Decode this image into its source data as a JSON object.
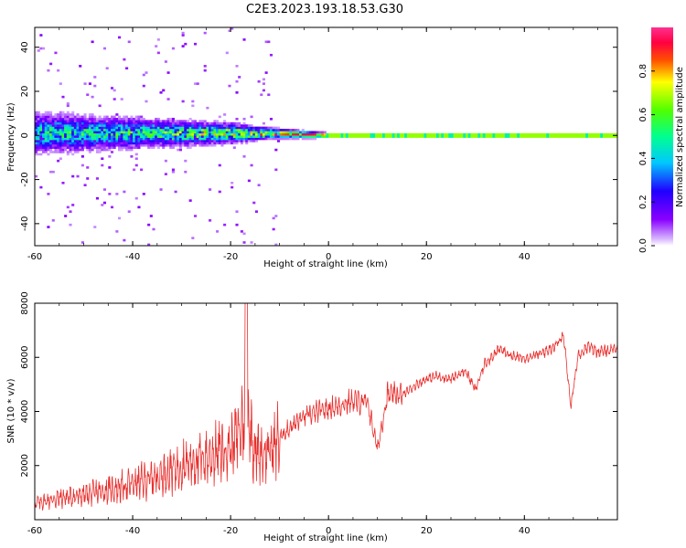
{
  "title": "C2E3.2023.193.18.53.G30",
  "colors": {
    "snr_line": "#e8302e",
    "axis": "#000000",
    "background": "#ffffff"
  },
  "chart_data": [
    {
      "type": "heatmap",
      "title": "C2E3.2023.193.18.53.G30",
      "xlabel": "Height of straight line (km)",
      "ylabel": "Frequency (Hz)",
      "xlim": [
        -60,
        59
      ],
      "ylim": [
        -50,
        49
      ],
      "xticks": [
        -60,
        -40,
        -20,
        0,
        20,
        40
      ],
      "yticks": [
        -40,
        -20,
        0,
        20,
        40
      ],
      "colorbar": {
        "label": "Normalized spectral amplitude",
        "range": [
          0,
          1
        ],
        "ticks": [
          0.0,
          0.2,
          0.4,
          0.6,
          0.8
        ],
        "colormap": "rainbow (white-violet-blue-cyan-green-yellow-red-pink)"
      },
      "description_points": [
        {
          "x": -60,
          "y_center": 1,
          "spread_hz": 8,
          "peak_amplitude": 0.5
        },
        {
          "x": -40,
          "y_center": 1,
          "spread_hz": 6,
          "peak_amplitude": 0.55
        },
        {
          "x": -20,
          "y_center": 1,
          "spread_hz": 4,
          "peak_amplitude": 0.7
        },
        {
          "x": -12,
          "y_center": 1,
          "spread_hz": 2,
          "peak_amplitude": 0.85
        },
        {
          "x": 0,
          "y_center": 0,
          "spread_hz": 1,
          "peak_amplitude": 1.0
        },
        {
          "x": 20,
          "y_center": 0,
          "spread_hz": 1,
          "peak_amplitude": 1.0
        },
        {
          "x": 40,
          "y_center": 0,
          "spread_hz": 1,
          "peak_amplitude": 1.0
        },
        {
          "x": 59,
          "y_center": 0,
          "spread_hz": 1,
          "peak_amplitude": 1.0
        }
      ],
      "grid": false
    },
    {
      "type": "line",
      "xlabel": "Height of straight line (km)",
      "ylabel": "SNR (10 * v/v)",
      "xlim": [
        -60,
        59
      ],
      "ylim": [
        0,
        8000
      ],
      "xticks": [
        -60,
        -40,
        -20,
        0,
        20,
        40
      ],
      "yticks": [
        2000,
        4000,
        6000,
        8000
      ],
      "series": [
        {
          "x": [
            -60,
            -55,
            -50,
            -45,
            -40,
            -35,
            -30,
            -25,
            -20,
            -18,
            -16.8,
            -15,
            -12,
            -10,
            -8,
            -5,
            -2,
            0,
            2,
            5,
            8,
            10,
            12,
            15,
            18,
            20,
            22,
            25,
            28,
            30,
            32,
            35,
            38,
            40,
            43,
            46,
            48,
            49.5,
            51,
            53,
            55,
            59
          ],
          "values": [
            600,
            800,
            900,
            1100,
            1300,
            1600,
            2000,
            2300,
            2700,
            3300,
            4200,
            2500,
            2500,
            3000,
            3400,
            3800,
            4000,
            4100,
            4200,
            4400,
            4300,
            2600,
            4600,
            4600,
            5000,
            5200,
            5300,
            5200,
            5500,
            4800,
            5800,
            6300,
            6000,
            6000,
            6100,
            6400,
            6800,
            4200,
            6100,
            6400,
            6200,
            6300
          ]
        }
      ],
      "grid": false
    }
  ]
}
